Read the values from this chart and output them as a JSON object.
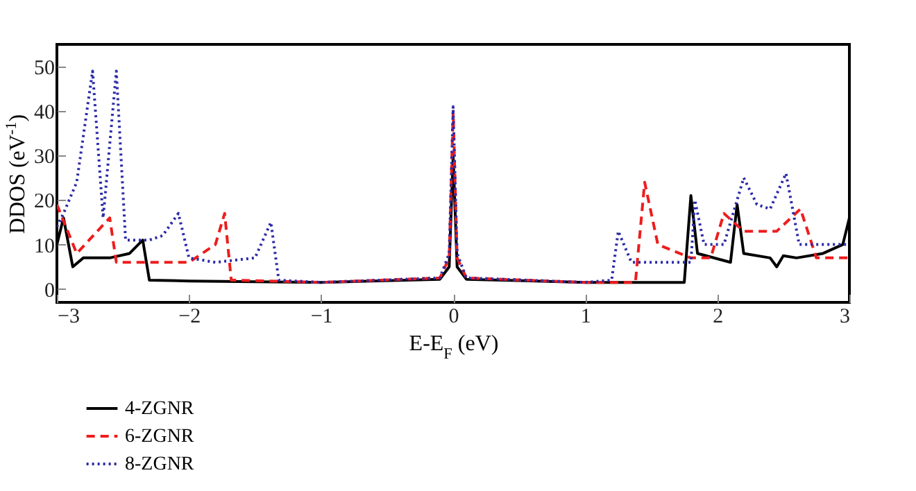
{
  "chart_data": {
    "type": "line",
    "xlabel": "E-E$_{F}$ (eV)",
    "ylabel": "DDOS (eV$^{-1}$)",
    "xlim": [
      -3,
      3
    ],
    "xticks": [
      -3,
      -2,
      -1,
      0,
      1,
      2,
      3
    ],
    "ylim": [
      -3,
      55
    ],
    "yticks": [
      0,
      10,
      20,
      30,
      40,
      50
    ],
    "grid": false,
    "legend": "bottom left",
    "series": [
      {
        "name": "4-ZGNR",
        "color": "#000000",
        "line_style": "solid",
        "x": [
          -3,
          -2.95,
          -2.88,
          -2.8,
          -2.6,
          -2.45,
          -2.35,
          -2.3,
          -2,
          -1,
          -0.1,
          -0.03,
          0,
          0.03,
          0.1,
          1,
          1.75,
          1.8,
          1.85,
          2.1,
          2.15,
          2.2,
          2.4,
          2.45,
          2.5,
          2.6,
          2.8,
          2.95,
          3
        ],
        "values": [
          10,
          16,
          5,
          7,
          7,
          8,
          11,
          2,
          1.8,
          1.5,
          2.2,
          5,
          30,
          5,
          2.2,
          1.5,
          1.5,
          21,
          8,
          6,
          19,
          8,
          7,
          5,
          7.5,
          7,
          8,
          10,
          16
        ]
      },
      {
        "name": "6-ZGNR",
        "color": "#ee1c1c",
        "line_style": "dashed",
        "x": [
          -3,
          -2.85,
          -2.6,
          -2.55,
          -2.3,
          -2,
          -1.8,
          -1.73,
          -1.68,
          -1,
          -0.1,
          -0.03,
          0,
          0.03,
          0.1,
          1,
          1.38,
          1.45,
          1.55,
          1.8,
          1.95,
          2.05,
          2.2,
          2.45,
          2.63,
          2.75,
          3
        ],
        "values": [
          19,
          8,
          16,
          6,
          6,
          6,
          10,
          17,
          2,
          1.5,
          2.5,
          7,
          40,
          7,
          2.5,
          1.5,
          1.5,
          24,
          10,
          7,
          7,
          17,
          13,
          13,
          18,
          7,
          7
        ]
      },
      {
        "name": "8-ZGNR",
        "color": "#2b2ba8",
        "line_style": "dotted",
        "x": [
          -3,
          -2.95,
          -2.85,
          -2.73,
          -2.65,
          -2.55,
          -2.48,
          -2.3,
          -2.2,
          -2.08,
          -2,
          -1.8,
          -1.5,
          -1.38,
          -1.32,
          -1,
          -0.1,
          -0.03,
          0,
          0.03,
          0.1,
          1,
          1.2,
          1.25,
          1.35,
          1.8,
          1.83,
          1.9,
          2.05,
          2.2,
          2.3,
          2.4,
          2.52,
          2.62,
          3
        ],
        "values": [
          14,
          17,
          24,
          49,
          16,
          49,
          11,
          11,
          12,
          17,
          7,
          6,
          7,
          15,
          2,
          1.5,
          2.5,
          8,
          41,
          8,
          2.5,
          1.5,
          2,
          13,
          6,
          6,
          20,
          10,
          10,
          25,
          19,
          18,
          26,
          10,
          10
        ]
      }
    ]
  }
}
